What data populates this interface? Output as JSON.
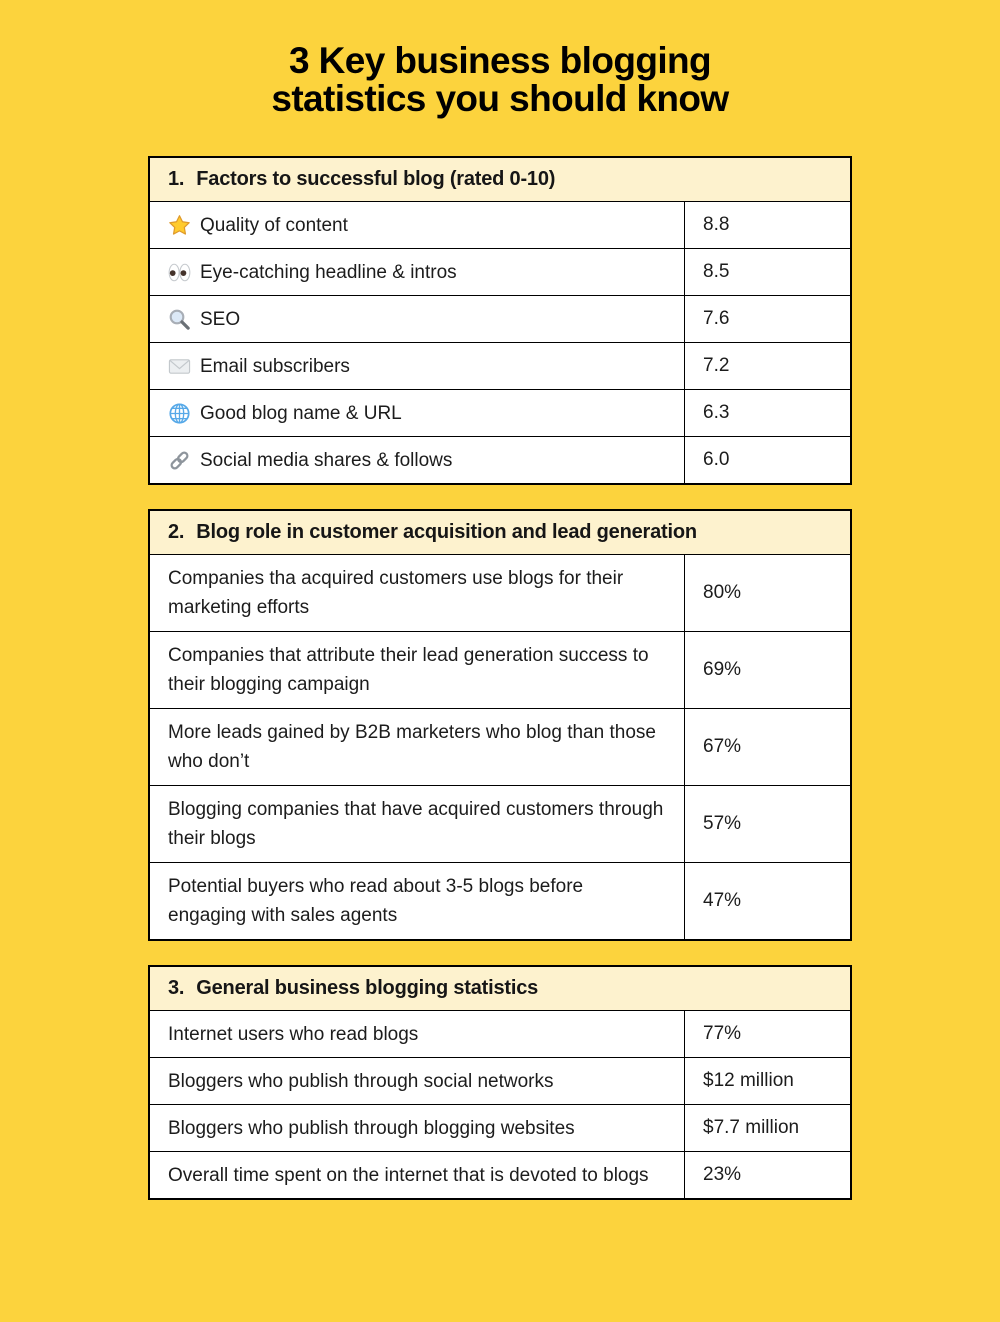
{
  "title": {
    "line1": "3 Key business blogging",
    "line2": "statistics you should know"
  },
  "colors": {
    "background": "#FCD33D",
    "header_bg": "#FDF2CE",
    "row_bg": "#FFFFFF",
    "border": "#000000",
    "text": "#111111"
  },
  "icons": {
    "star": "star-icon",
    "eyes": "eyes-icon",
    "magnifier": "magnifying-glass-icon",
    "envelope": "envelope-icon",
    "globe": "globe-icon",
    "link": "link-icon"
  },
  "sections": [
    {
      "number": "1.",
      "title": "Factors to successful blog (rated 0-10)",
      "rows": [
        {
          "icon": "star",
          "label": "Quality of content",
          "value": "8.8"
        },
        {
          "icon": "eyes",
          "label": "Eye-catching headline & intros",
          "value": "8.5"
        },
        {
          "icon": "magnifier",
          "label": "SEO",
          "value": "7.6"
        },
        {
          "icon": "envelope",
          "label": "Email subscribers",
          "value": "7.2"
        },
        {
          "icon": "globe",
          "label": "Good blog name & URL",
          "value": "6.3"
        },
        {
          "icon": "link",
          "label": "Social media shares & follows",
          "value": "6.0"
        }
      ]
    },
    {
      "number": "2.",
      "title": "Blog role in customer acquisition and lead generation",
      "rows": [
        {
          "label": "Companies tha acquired customers use blogs for their marketing efforts",
          "value": "80%"
        },
        {
          "label": "Companies that attribute their lead generation success to their blogging campaign",
          "value": "69%"
        },
        {
          "label": "More leads gained by B2B marketers who blog than those who don’t",
          "value": "67%"
        },
        {
          "label": "Blogging companies that have acquired customers through their blogs",
          "value": "57%"
        },
        {
          "label": "Potential buyers who read about 3-5 blogs before engaging with sales agents",
          "value": "47%"
        }
      ]
    },
    {
      "number": "3.",
      "title": "General business blogging statistics",
      "rows": [
        {
          "label": "Internet users who read blogs",
          "value": "77%"
        },
        {
          "label": "Bloggers who publish through social networks",
          "value": "$12 million"
        },
        {
          "label": "Bloggers who publish through blogging websites",
          "value": "$7.7 million"
        },
        {
          "label": "Overall time spent on the internet that is devoted to blogs",
          "value": "23%"
        }
      ]
    }
  ],
  "chart_data": [
    {
      "type": "table",
      "title": "1. Factors to successful blog (rated 0-10)",
      "categories": [
        "Quality of content",
        "Eye-catching headline & intros",
        "SEO",
        "Email subscribers",
        "Good blog name & URL",
        "Social media shares & follows"
      ],
      "values": [
        8.8,
        8.5,
        7.6,
        7.2,
        6.3,
        6.0
      ],
      "value_range": [
        0,
        10
      ]
    },
    {
      "type": "table",
      "title": "2. Blog role in customer acquisition and lead generation",
      "categories": [
        "Companies tha acquired customers use blogs for their marketing efforts",
        "Companies that attribute their lead generation success to their blogging campaign",
        "More leads gained by B2B marketers who blog than those who don’t",
        "Blogging companies that have acquired customers through their blogs",
        "Potential buyers who read about 3-5 blogs before engaging with sales agents"
      ],
      "values": [
        "80%",
        "69%",
        "67%",
        "57%",
        "47%"
      ]
    },
    {
      "type": "table",
      "title": "3. General business blogging statistics",
      "categories": [
        "Internet users who read blogs",
        "Bloggers who publish through social networks",
        "Bloggers who publish through blogging websites",
        "Overall time spent on the internet that is devoted to blogs"
      ],
      "values": [
        "77%",
        "$12 million",
        "$7.7 million",
        "23%"
      ]
    }
  ]
}
